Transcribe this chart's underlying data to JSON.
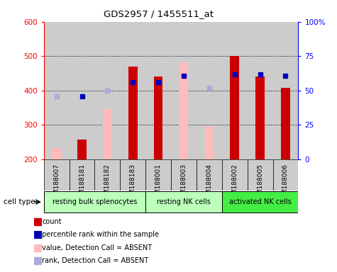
{
  "title": "GDS2957 / 1455511_at",
  "samples": [
    "GSM188007",
    "GSM188181",
    "GSM188182",
    "GSM188183",
    "GSM188001",
    "GSM188003",
    "GSM188004",
    "GSM188002",
    "GSM188005",
    "GSM188006"
  ],
  "groups": [
    {
      "name": "resting bulk splenocytes",
      "color": "#bbffbb",
      "indices": [
        0,
        1,
        2,
        3
      ]
    },
    {
      "name": "resting NK cells",
      "color": "#bbffbb",
      "indices": [
        4,
        5,
        6
      ]
    },
    {
      "name": "activated NK cells",
      "color": "#44ee44",
      "indices": [
        7,
        8,
        9
      ]
    }
  ],
  "count_values": [
    null,
    258,
    null,
    470,
    440,
    null,
    null,
    500,
    440,
    408
  ],
  "pink_values": [
    232,
    null,
    345,
    null,
    null,
    482,
    296,
    null,
    null,
    null
  ],
  "light_blue_sq": [
    383,
    null,
    400,
    null,
    null,
    null,
    407,
    null,
    null,
    null
  ],
  "dark_blue_sq": [
    null,
    383,
    null,
    425,
    425,
    443,
    null,
    447,
    447,
    443
  ],
  "ymin": 200,
  "ymax": 600,
  "yticks_left": [
    200,
    300,
    400,
    500,
    600
  ],
  "yticks_right_vals": [
    0,
    25,
    50,
    75,
    100
  ],
  "yticks_right_labels": [
    "0",
    "25",
    "50",
    "75",
    "100%"
  ],
  "bar_color_red": "#cc0000",
  "bar_color_pink": "#ffbbbb",
  "bar_color_blue_dark": "#0000bb",
  "bar_color_blue_light": "#aaaadd",
  "background_samples": "#cccccc",
  "cell_type_label": "cell type"
}
